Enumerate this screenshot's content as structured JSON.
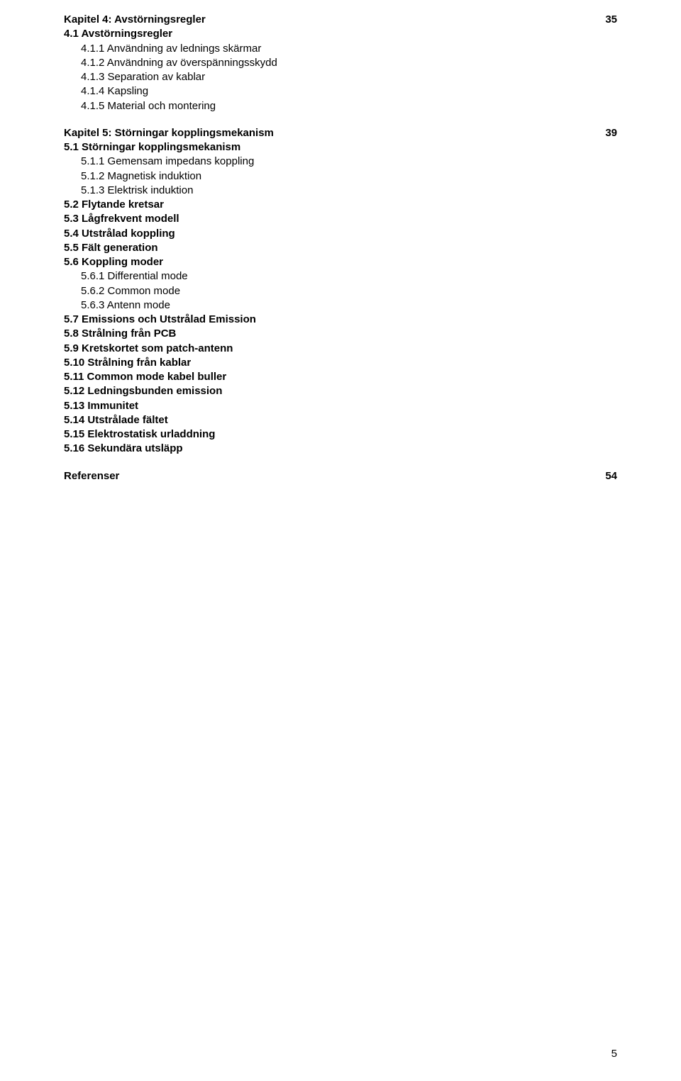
{
  "kap4": {
    "title": "Kapitel 4: Avstörningsregler",
    "page": "35",
    "s41": "4.1 Avstörningsregler",
    "s411": "4.1.1  Användning av lednings skärmar",
    "s412": "4.1.2 Användning av överspänningsskydd",
    "s413": "4.1.3 Separation av kablar",
    "s414": "4.1.4 Kapsling",
    "s415": "4.1.5 Material och montering"
  },
  "kap5": {
    "title": "Kapitel 5: Störningar kopplingsmekanism",
    "page": "39",
    "s51": "5.1 Störningar kopplingsmekanism",
    "s511": "5.1.1 Gemensam impedans koppling",
    "s512": "5.1.2 Magnetisk induktion",
    "s513": "5.1.3 Elektrisk induktion",
    "s52": "5.2 Flytande kretsar",
    "s53": "5.3 Lågfrekvent modell",
    "s54": "5.4 Utstrålad koppling",
    "s55": "5.5 Fält generation",
    "s56": "5.6 Koppling moder",
    "s561": "5.6.1 Differential mode",
    "s562": "5.6.2 Common mode",
    "s563": "5.6.3  Antenn mode",
    "s57": "5.7   Emissions och Utstrålad Emission",
    "s58": "5.8   Strålning från PCB",
    "s59": "5.9   Kretskortet som patch-antenn",
    "s510": "5.10 Strålning från kablar",
    "s511b": "5.11 Common mode kabel buller",
    "s512b": "5.12 Ledningsbunden emission",
    "s513b": "5.13 Immunitet",
    "s514": "5.14 Utstrålade fältet",
    "s515": "5.15 Elektrostatisk urladdning",
    "s516": "5.16 Sekundära utsläpp"
  },
  "refs": {
    "title": "Referenser",
    "page": "54"
  },
  "footer": "5"
}
